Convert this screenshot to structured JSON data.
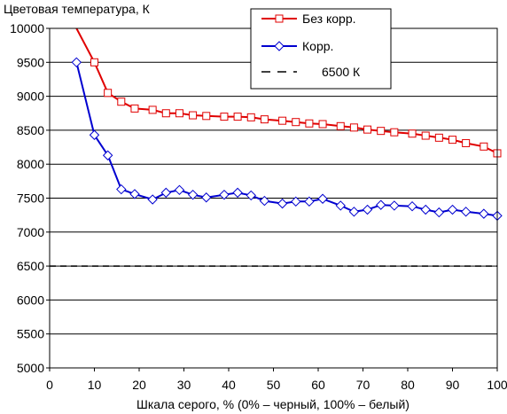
{
  "chart_data": {
    "type": "line",
    "title": "",
    "ylabel": "Цветовая температура, К",
    "xlabel": "Шкала серого, % (0% – черный, 100% – белый)",
    "xlim": [
      0,
      100
    ],
    "ylim": [
      5000,
      10000
    ],
    "xticks": [
      "0",
      "10",
      "20",
      "30",
      "40",
      "50",
      "60",
      "70",
      "80",
      "90",
      "100"
    ],
    "yticks": [
      "5000",
      "5500",
      "6000",
      "6500",
      "7000",
      "7500",
      "8000",
      "8500",
      "9000",
      "9500",
      "10000"
    ],
    "grid": "horizontal",
    "legend_position": "top-right",
    "series": [
      {
        "name": "Без корр.",
        "color": "#e00000",
        "marker": "square",
        "x": [
          6,
          10,
          13,
          16,
          19,
          23,
          26,
          29,
          32,
          35,
          39,
          42,
          45,
          48,
          52,
          55,
          58,
          61,
          65,
          68,
          71,
          74,
          77,
          81,
          84,
          87,
          90,
          93,
          97,
          100
        ],
        "y": [
          10000,
          9500,
          9050,
          8920,
          8820,
          8800,
          8750,
          8750,
          8720,
          8710,
          8700,
          8700,
          8690,
          8660,
          8640,
          8620,
          8600,
          8590,
          8560,
          8540,
          8510,
          8490,
          8470,
          8450,
          8420,
          8390,
          8360,
          8310,
          8260,
          8160
        ]
      },
      {
        "name": "Корр.",
        "color": "#0000d0",
        "marker": "diamond",
        "x": [
          6,
          10,
          13,
          16,
          19,
          23,
          26,
          29,
          32,
          35,
          39,
          42,
          45,
          48,
          52,
          55,
          58,
          61,
          65,
          68,
          71,
          74,
          77,
          81,
          84,
          87,
          90,
          93,
          97,
          100
        ],
        "y": [
          9500,
          8430,
          8130,
          7630,
          7560,
          7480,
          7580,
          7620,
          7550,
          7510,
          7550,
          7580,
          7540,
          7460,
          7420,
          7450,
          7450,
          7490,
          7390,
          7300,
          7330,
          7400,
          7390,
          7380,
          7330,
          7290,
          7330,
          7300,
          7270,
          7240
        ]
      },
      {
        "name": "6500 К",
        "color": "#000000",
        "style": "dashed",
        "x": [
          0,
          100
        ],
        "y": [
          6500,
          6500
        ]
      }
    ]
  }
}
